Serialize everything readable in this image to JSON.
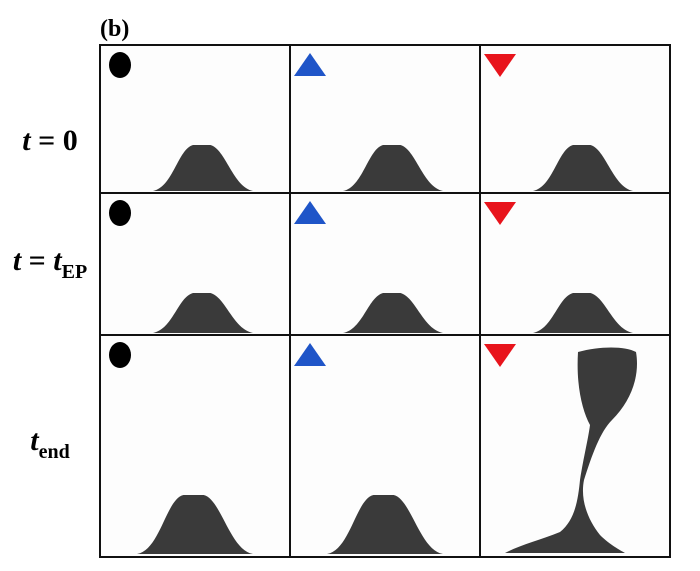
{
  "panel_label": "(b)",
  "rows": [
    {
      "label": [
        {
          "text": "t",
          "style": "italic"
        },
        {
          "text": " = 0",
          "style": "normal"
        }
      ]
    },
    {
      "label": [
        {
          "text": "t",
          "style": "italic"
        },
        {
          "text": " = ",
          "style": "normal"
        },
        {
          "text": "t",
          "style": "italic"
        },
        {
          "text": "EP",
          "style": "sub"
        }
      ]
    },
    {
      "label": [
        {
          "text": "t",
          "style": "italic"
        },
        {
          "text": "end",
          "style": "sub"
        }
      ]
    }
  ],
  "columns": [
    {
      "marker": "circle",
      "color": "#000000"
    },
    {
      "marker": "triangle-up",
      "color": "#1f55c8"
    },
    {
      "marker": "triangle-down",
      "color": "#e8141c"
    }
  ]
}
